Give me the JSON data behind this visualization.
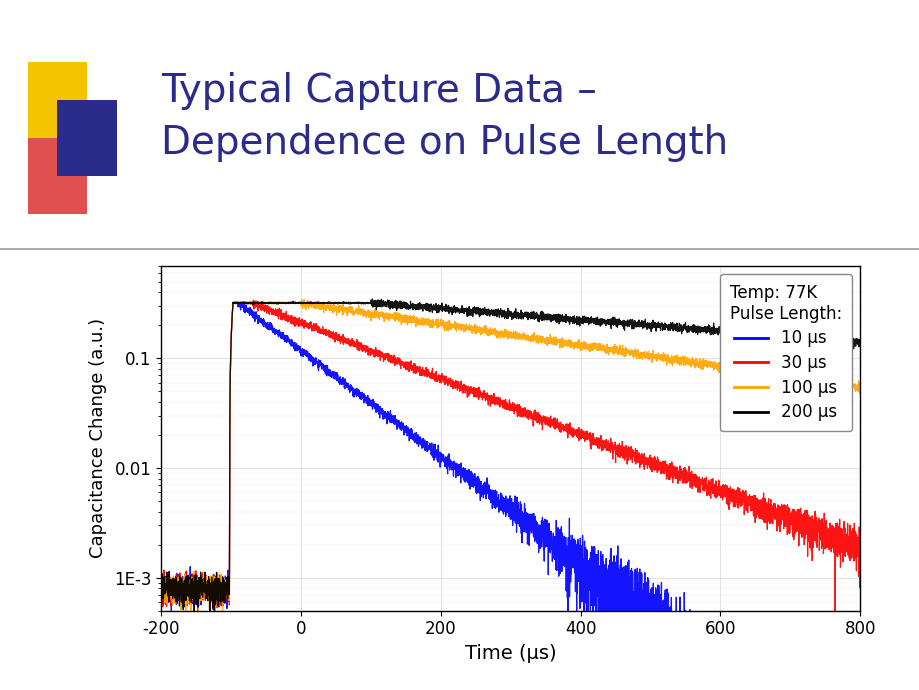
{
  "title_line1": "Typical Capture Data –",
  "title_line2": "Dependence on Pulse Length",
  "title_color": "#2B2B8C",
  "title_fontsize": 28,
  "xlabel": "Time (μs)",
  "ylabel": "Capacitance Change (a.u.)",
  "xlim": [
    -200,
    800
  ],
  "xticks": [
    -200,
    0,
    200,
    400,
    600,
    800
  ],
  "yticks_labels": [
    "1E-3",
    "0.01",
    "0.1"
  ],
  "yticks_vals": [
    0.001,
    0.01,
    0.1
  ],
  "legend_title_line1": "Temp: 77K",
  "legend_title_line2": "Pulse Length:",
  "legend_entries": [
    "10 μs",
    "30 μs",
    "100 μs",
    "200 μs"
  ],
  "colors": [
    "blue",
    "red",
    "orange",
    "black"
  ],
  "pulse_lengths": [
    10,
    30,
    100,
    200
  ],
  "background_color": "#FFFFFF",
  "grid_color": "#CCCCCC",
  "sq_yellow": "#F5C400",
  "sq_red": "#E05050",
  "sq_blue": "#2B2B8C"
}
